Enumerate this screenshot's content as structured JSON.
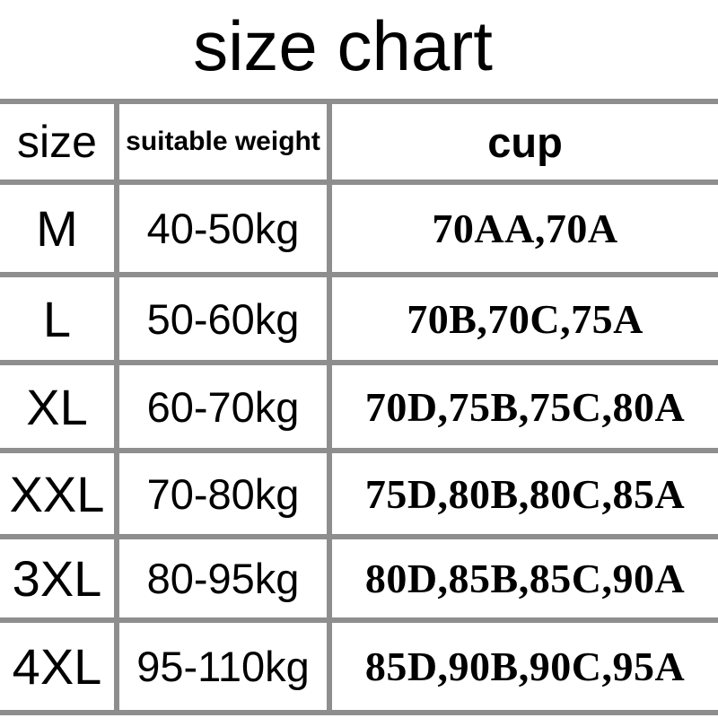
{
  "chart_data": {
    "type": "table",
    "title": "size chart",
    "columns": [
      "size",
      "suitable weight",
      "cup"
    ],
    "rows": [
      [
        "M",
        "40-50kg",
        "70AA,70A"
      ],
      [
        "L",
        "50-60kg",
        "70B,70C,75A"
      ],
      [
        "XL",
        "60-70kg",
        "70D,75B,75C,80A"
      ],
      [
        "XXL",
        "70-80kg",
        "75D,80B,80C,85A"
      ],
      [
        "3XL",
        "80-95kg",
        "80D,85B,85C,90A"
      ],
      [
        "4XL",
        "95-110kg",
        "85D,90B,90C,95A"
      ]
    ],
    "layout": {
      "grid_color": "#8e8e8e",
      "text_color": "#000000",
      "header_row": true,
      "vertical_rules_between_columns": true
    }
  }
}
